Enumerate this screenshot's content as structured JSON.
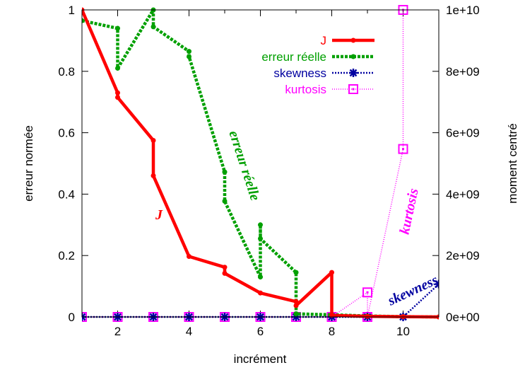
{
  "chart_data": {
    "type": "line",
    "xlabel": "incrément",
    "ylabel": "erreur normée",
    "y2label": "moment centré",
    "xlim": [
      1,
      11
    ],
    "ylim": [
      0,
      1
    ],
    "y2lim": [
      0,
      10000000000
    ],
    "xticks": [
      2,
      4,
      6,
      8,
      10
    ],
    "yticks": [
      0,
      0.2,
      0.4,
      0.6,
      0.8,
      1
    ],
    "ytick_labels": [
      "0",
      "0.2",
      "0.4",
      "0.6",
      "0.8",
      "1"
    ],
    "y2ticks": [
      0,
      2000000000,
      4000000000,
      6000000000,
      8000000000,
      10000000000
    ],
    "y2tick_labels": [
      "0e+00",
      "2e+09",
      "4e+09",
      "6e+09",
      "8e+09",
      "1e+10"
    ],
    "legend_position": "top-right",
    "grid": false,
    "series": [
      {
        "name": "J",
        "axis": "left",
        "color": "#ff0000",
        "style": "solid",
        "marker": "dot",
        "points": [
          [
            1,
            1.0
          ],
          [
            2,
            0.73
          ],
          [
            2,
            0.715
          ],
          [
            3,
            0.575
          ],
          [
            3,
            0.46
          ],
          [
            4,
            0.197
          ],
          [
            5,
            0.162
          ],
          [
            5,
            0.142
          ],
          [
            6,
            0.078
          ],
          [
            7,
            0.05
          ],
          [
            7,
            0.037
          ],
          [
            8,
            0.145
          ],
          [
            8,
            0.005
          ],
          [
            9,
            0.002
          ],
          [
            10,
            0.001
          ],
          [
            11,
            0.0
          ]
        ]
      },
      {
        "name": "erreur réelle",
        "axis": "left",
        "color": "#00a000",
        "style": "dashed",
        "marker": "dot",
        "points": [
          [
            1,
            0.965
          ],
          [
            2,
            0.94
          ],
          [
            2,
            0.81
          ],
          [
            3,
            1.0
          ],
          [
            3,
            0.945
          ],
          [
            4,
            0.865
          ],
          [
            4,
            0.848
          ],
          [
            5,
            0.472
          ],
          [
            5,
            0.377
          ],
          [
            6,
            0.13
          ],
          [
            6,
            0.3
          ],
          [
            6,
            0.255
          ],
          [
            7,
            0.145
          ],
          [
            7,
            0.01
          ],
          [
            8,
            0.007
          ],
          [
            9,
            0.003
          ],
          [
            10,
            0.001
          ],
          [
            11,
            0.0
          ]
        ]
      },
      {
        "name": "skewness",
        "axis": "right",
        "color": "#0000a0",
        "style": "dotted",
        "marker": "star",
        "points": [
          [
            1,
            0
          ],
          [
            2,
            0
          ],
          [
            3,
            0
          ],
          [
            4,
            0
          ],
          [
            5,
            0
          ],
          [
            6,
            0
          ],
          [
            7,
            0
          ],
          [
            8,
            0
          ],
          [
            9,
            0
          ],
          [
            10,
            0
          ],
          [
            11,
            1070000000
          ]
        ]
      },
      {
        "name": "kurtosis",
        "axis": "right",
        "color": "#ff00ff",
        "style": "dotted-fine",
        "marker": "square",
        "points": [
          [
            1,
            0
          ],
          [
            2,
            0
          ],
          [
            3,
            0
          ],
          [
            4,
            0
          ],
          [
            5,
            0
          ],
          [
            6,
            0
          ],
          [
            7,
            0
          ],
          [
            8,
            0
          ],
          [
            9,
            800000000
          ],
          [
            9,
            0
          ],
          [
            10,
            5470000000
          ],
          [
            10,
            10000000000
          ]
        ]
      }
    ],
    "annotations": [
      {
        "text": "J",
        "color": "#ff0000"
      },
      {
        "text": "erreur réelle",
        "color": "#00a000"
      },
      {
        "text": "kurtosis",
        "color": "#ff00ff"
      },
      {
        "text": "skewness",
        "color": "#0000a0"
      }
    ]
  }
}
